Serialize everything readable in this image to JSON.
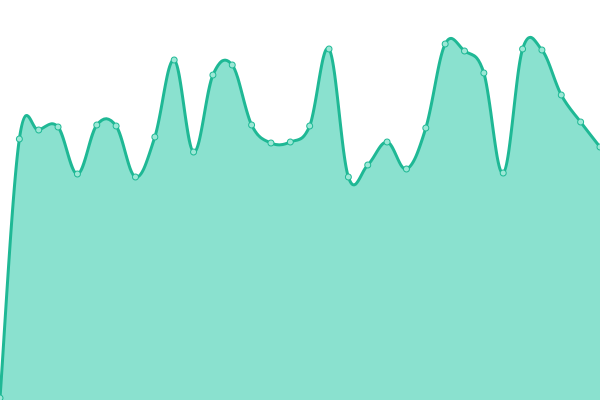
{
  "chart_data": {
    "type": "area",
    "values": [
      2,
      261,
      270,
      273,
      226,
      275,
      274,
      223,
      263,
      340,
      248,
      325,
      335,
      275,
      257,
      258,
      274,
      351,
      223,
      235,
      258,
      231,
      272,
      356,
      349,
      327,
      227,
      351,
      350,
      305,
      278,
      253
    ],
    "ylim": [
      0,
      400
    ],
    "color": "#1fb895",
    "fill_color": "#8ae1cf",
    "marker_color": "#9ce8d6"
  }
}
